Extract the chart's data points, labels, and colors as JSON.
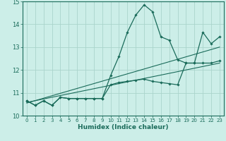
{
  "title": "",
  "xlabel": "Humidex (Indice chaleur)",
  "bg_color": "#cceee8",
  "grid_color": "#aad4cc",
  "line_color": "#1a6b5a",
  "xlim": [
    -0.5,
    23.5
  ],
  "ylim": [
    10,
    15
  ],
  "xticks": [
    0,
    1,
    2,
    3,
    4,
    5,
    6,
    7,
    8,
    9,
    10,
    11,
    12,
    13,
    14,
    15,
    16,
    17,
    18,
    19,
    20,
    21,
    22,
    23
  ],
  "yticks": [
    10,
    11,
    12,
    13,
    14,
    15
  ],
  "curve1_x": [
    0,
    1,
    2,
    3,
    4,
    5,
    6,
    7,
    8,
    9,
    10,
    11,
    12,
    13,
    14,
    15,
    16,
    17,
    18,
    19,
    20,
    21,
    22,
    23
  ],
  "curve1_y": [
    10.65,
    10.45,
    10.65,
    10.45,
    10.8,
    10.75,
    10.75,
    10.75,
    10.75,
    10.75,
    11.75,
    12.6,
    13.65,
    14.4,
    14.85,
    14.55,
    13.45,
    13.3,
    12.45,
    12.3,
    12.3,
    13.65,
    13.15,
    13.45
  ],
  "curve2_x": [
    0,
    1,
    2,
    3,
    4,
    5,
    6,
    7,
    8,
    9,
    10,
    11,
    12,
    13,
    14,
    15,
    16,
    17,
    18,
    19,
    20,
    21,
    22,
    23
  ],
  "curve2_y": [
    10.65,
    10.45,
    10.65,
    10.45,
    10.8,
    10.75,
    10.75,
    10.75,
    10.75,
    10.75,
    11.35,
    11.45,
    11.5,
    11.55,
    11.6,
    11.5,
    11.45,
    11.4,
    11.35,
    12.3,
    12.3,
    12.3,
    12.3,
    12.4
  ],
  "line1_x": [
    0,
    23
  ],
  "line1_y": [
    10.55,
    13.0
  ],
  "line2_x": [
    0,
    23
  ],
  "line2_y": [
    10.58,
    12.3
  ]
}
